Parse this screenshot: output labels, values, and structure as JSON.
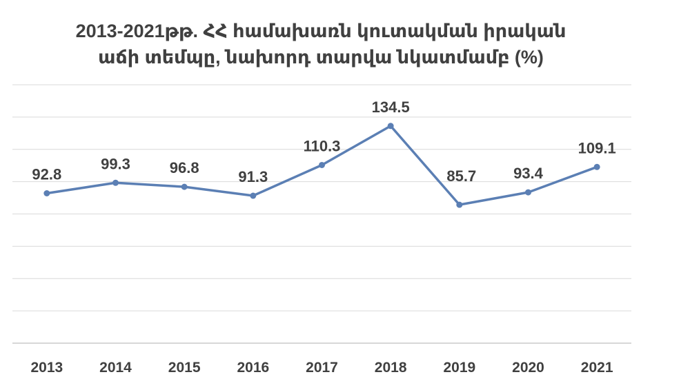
{
  "chart_data": {
    "type": "line",
    "title": "2013-2021թթ. ՀՀ համախառն կուտակման իրական աճի տեմպը, նախորդ տարվա նկատմամբ (%)",
    "title_lines": [
      "2013-2021թթ. ՀՀ համախառն կուտակման իրական",
      "աճի տեմպը, նախորդ տարվա նկատմամբ (%)"
    ],
    "categories": [
      "2013",
      "2014",
      "2015",
      "2016",
      "2017",
      "2018",
      "2019",
      "2020",
      "2021"
    ],
    "series": [
      {
        "values": [
          92.8,
          99.3,
          96.8,
          91.3,
          110.3,
          134.5,
          85.7,
          93.4,
          109.1
        ]
      }
    ],
    "ylim": [
      0,
      160
    ],
    "grid": true,
    "legend": "none",
    "data_labels": true,
    "line_color": "#5b7fb4"
  }
}
